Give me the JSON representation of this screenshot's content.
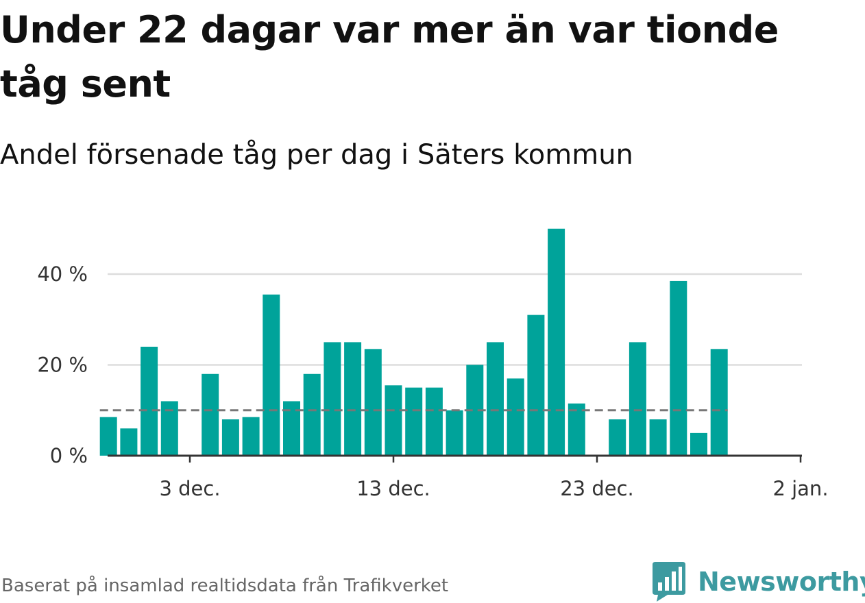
{
  "title": "Under 22 dagar var mer än var tionde tåg sent",
  "subtitle": "Andel försenade tåg per dag i Säters kommun",
  "footer": "Baserat på insamlad realtidsdata från Trafikverket",
  "brand": {
    "name": "Newsworthy",
    "icon": "newsworthy-logo-icon"
  },
  "colors": {
    "bar": "#00a39a",
    "reference_line": "#777777",
    "grid": "#dddddd",
    "axis": "#333333",
    "brand": "#3d9aa0"
  },
  "chart_data": {
    "type": "bar",
    "x_start": "2023-11-29",
    "x_end": "2024-01-02",
    "values": [
      8.5,
      6,
      24,
      12,
      null,
      18,
      8,
      8.5,
      35.5,
      12,
      18,
      25,
      25,
      23.5,
      15.5,
      15,
      15,
      10,
      20,
      25,
      17,
      31,
      50,
      11.5,
      null,
      8,
      25,
      8,
      38.5,
      5,
      23.5
    ],
    "reference_value": 10,
    "y_ticks": [
      0,
      20,
      40
    ],
    "y_tick_labels": [
      "0 %",
      "20 %",
      "40 %"
    ],
    "x_ticks": [
      {
        "date": "2023-12-03",
        "label": "3 dec."
      },
      {
        "date": "2023-12-13",
        "label": "13 dec."
      },
      {
        "date": "2023-12-23",
        "label": "23 dec."
      },
      {
        "date": "2024-01-02",
        "label": "2 jan."
      }
    ],
    "ylim": [
      0,
      50
    ],
    "grid": true
  }
}
